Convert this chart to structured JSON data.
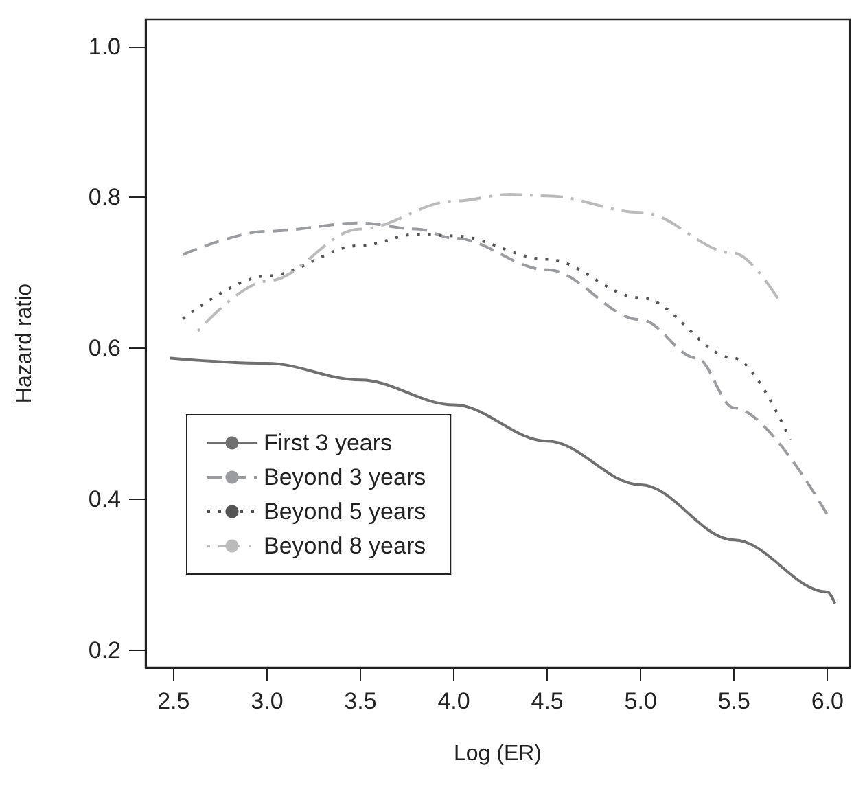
{
  "chart_data": {
    "type": "line",
    "xlabel": "Log (ER)",
    "ylabel": "Hazard ratio",
    "xlim": [
      2.35,
      6.12
    ],
    "xticks": [
      {
        "value": 2.5,
        "label": "2.5"
      },
      {
        "value": 3,
        "label": "3.0"
      },
      {
        "value": 3.5,
        "label": "3.5"
      },
      {
        "value": 4,
        "label": "4.0"
      },
      {
        "value": 4.5,
        "label": "4.5"
      },
      {
        "value": 5,
        "label": "5.0"
      },
      {
        "value": 5.5,
        "label": "5.5"
      },
      {
        "value": 6,
        "label": "6.0"
      }
    ],
    "ylim": [
      0.177,
      1.036
    ],
    "yticks": [
      0.2,
      0.4,
      0.6,
      0.8,
      {
        "value": 1,
        "label": "1.0"
      }
    ],
    "grid": false,
    "legend": "bottom left",
    "marker": "none",
    "series": [
      {
        "name": "First 3 years",
        "color": "#707070",
        "line_style": "solid",
        "x": [
          2.48,
          3.0,
          3.5,
          4.0,
          4.5,
          5.0,
          5.5,
          6.0,
          6.04
        ],
        "values": [
          0.587,
          0.58,
          0.558,
          0.525,
          0.477,
          0.419,
          0.346,
          0.277,
          0.262
        ]
      },
      {
        "name": "Beyond 3 years",
        "color": "#9a9ca0",
        "line_style": "dashed",
        "x": [
          2.55,
          3.0,
          3.5,
          3.8,
          4.0,
          4.5,
          5.0,
          5.3,
          5.5,
          6.0
        ],
        "values": [
          0.724,
          0.755,
          0.766,
          0.758,
          0.746,
          0.704,
          0.638,
          0.587,
          0.521,
          0.379
        ]
      },
      {
        "name": "Beyond 5 years",
        "color": "#555555",
        "line_style": "dotted",
        "x": [
          2.55,
          3.0,
          3.5,
          3.8,
          4.0,
          4.5,
          5.0,
          5.5,
          5.8
        ],
        "values": [
          0.639,
          0.696,
          0.736,
          0.751,
          0.749,
          0.718,
          0.667,
          0.587,
          0.479
        ]
      },
      {
        "name": "Beyond 8 years",
        "color": "#bbbbbb",
        "line_style": "dashdot",
        "x": [
          2.63,
          3.0,
          3.5,
          4.0,
          4.3,
          4.5,
          5.0,
          5.5,
          5.75
        ],
        "values": [
          0.623,
          0.689,
          0.758,
          0.795,
          0.804,
          0.802,
          0.78,
          0.726,
          0.66
        ]
      }
    ]
  }
}
